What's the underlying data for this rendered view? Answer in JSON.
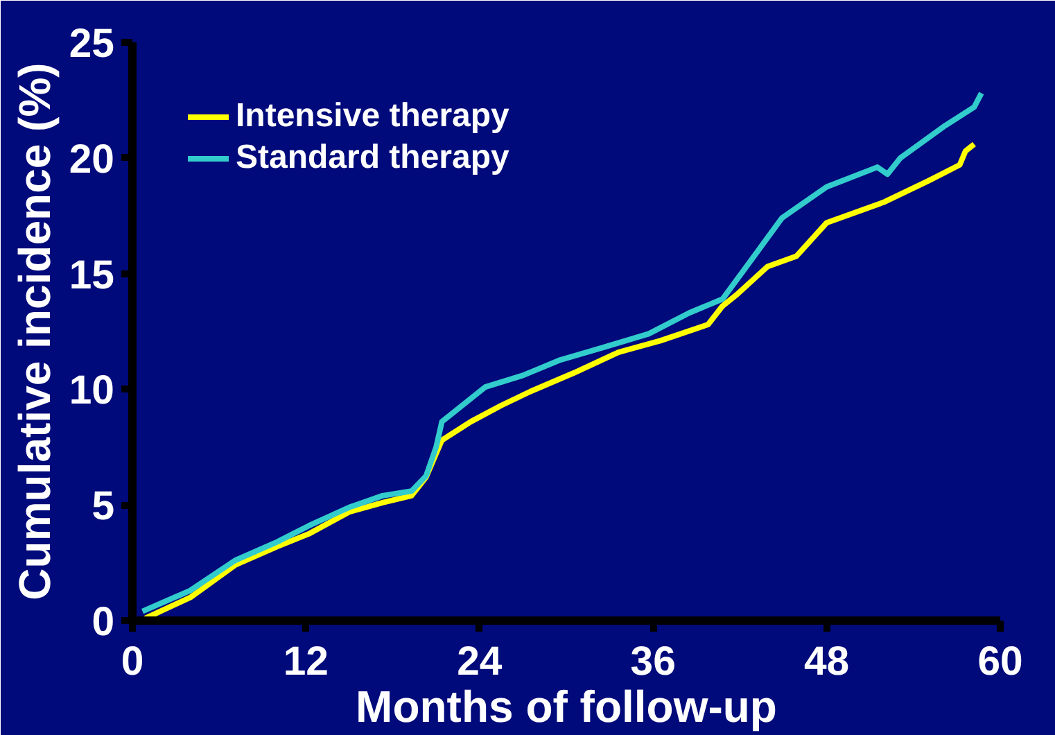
{
  "chart_data": {
    "type": "line",
    "xlabel": "Months of follow-up",
    "ylabel": "Cumulative incidence (%)",
    "xlim": [
      0,
      60
    ],
    "xticks": [
      0,
      12,
      24,
      36,
      48,
      60
    ],
    "ylim": [
      0,
      25
    ],
    "yticks": [
      0,
      5,
      10,
      15,
      20,
      25
    ],
    "grid": false,
    "legend": "top left",
    "line_style": "solid",
    "series": [
      {
        "name": "Intensive therapy",
        "color": "#ffff00",
        "x": [
          0.9,
          4,
          7.1,
          10,
          12.2,
          15,
          17.3,
          19.3,
          20.3,
          21.4,
          23.4,
          25.5,
          27.5,
          30.5,
          33.6,
          36.5,
          39.8,
          40.8,
          41.8,
          43.9,
          45.9,
          48.0,
          52.0,
          55,
          57.2,
          57.6,
          58.2
        ],
        "values": [
          0.1,
          1.0,
          2.4,
          3.2,
          3.75,
          4.7,
          5.1,
          5.4,
          6.2,
          7.8,
          8.6,
          9.3,
          9.9,
          10.7,
          11.6,
          12.1,
          12.8,
          13.6,
          14.1,
          15.3,
          15.75,
          17.2,
          18.1,
          19.0,
          19.7,
          20.3,
          20.6
        ]
      },
      {
        "name": "Standard therapy",
        "color": "#33cccc",
        "x": [
          0.7,
          4,
          7.1,
          10,
          12.2,
          15,
          17.3,
          19.3,
          20.3,
          21.0,
          21.4,
          24.4,
          27,
          29.5,
          32.5,
          35.7,
          38.5,
          40.8,
          42.8,
          44.9,
          48.0,
          51.5,
          52.2,
          53.1,
          56.2,
          58.2,
          58.7
        ],
        "values": [
          0.4,
          1.3,
          2.6,
          3.4,
          4.1,
          4.9,
          5.4,
          5.6,
          6.25,
          7.5,
          8.6,
          10.1,
          10.6,
          11.25,
          11.8,
          12.4,
          13.3,
          13.9,
          15.6,
          17.4,
          18.75,
          19.6,
          19.3,
          20.0,
          21.4,
          22.2,
          22.8
        ]
      }
    ]
  }
}
